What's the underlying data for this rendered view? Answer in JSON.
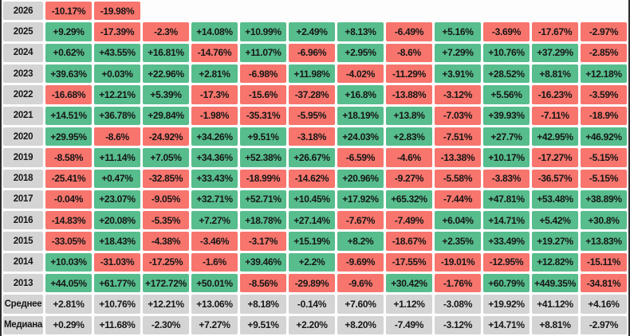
{
  "colors": {
    "positive": "#57bd8d",
    "negative": "#f7756d",
    "neutral": "#d4d4d4",
    "text": "#161616",
    "background": "#fdfdfd",
    "frame": "#2e2e2e"
  },
  "table": {
    "rows": [
      {
        "label": "2026",
        "type": "year",
        "values": [
          "-10.17%",
          "-19.98%",
          null,
          null,
          null,
          null,
          null,
          null,
          null,
          null,
          null,
          null
        ]
      },
      {
        "label": "2025",
        "type": "year",
        "values": [
          "+9.29%",
          "-17.39%",
          "-2.3%",
          "+14.08%",
          "+10.99%",
          "+2.49%",
          "+8.13%",
          "-6.49%",
          "+5.16%",
          "-3.69%",
          "-17.67%",
          "-2.97%"
        ]
      },
      {
        "label": "2024",
        "type": "year",
        "values": [
          "+0.62%",
          "+43.55%",
          "+16.81%",
          "-14.76%",
          "+11.07%",
          "-6.96%",
          "+2.95%",
          "-8.6%",
          "+7.29%",
          "+10.76%",
          "+37.29%",
          "-2.85%"
        ]
      },
      {
        "label": "2023",
        "type": "year",
        "values": [
          "+39.63%",
          "+0.03%",
          "+22.96%",
          "+2.81%",
          "-6.98%",
          "+11.98%",
          "-4.02%",
          "-11.29%",
          "+3.91%",
          "+28.52%",
          "+8.81%",
          "+12.18%"
        ]
      },
      {
        "label": "2022",
        "type": "year",
        "values": [
          "-16.68%",
          "+12.21%",
          "+5.39%",
          "-17.3%",
          "-15.6%",
          "-37.28%",
          "+16.8%",
          "-13.88%",
          "-3.12%",
          "+5.56%",
          "-16.23%",
          "-3.59%"
        ]
      },
      {
        "label": "2021",
        "type": "year",
        "values": [
          "+14.51%",
          "+36.78%",
          "+29.84%",
          "-1.98%",
          "-35.31%",
          "-5.95%",
          "+18.19%",
          "+13.8%",
          "-7.03%",
          "+39.93%",
          "-7.11%",
          "-18.9%"
        ]
      },
      {
        "label": "2020",
        "type": "year",
        "values": [
          "+29.95%",
          "-8.6%",
          "-24.92%",
          "+34.26%",
          "+9.51%",
          "-3.18%",
          "+24.03%",
          "+2.83%",
          "-7.51%",
          "+27.7%",
          "+42.95%",
          "+46.92%"
        ]
      },
      {
        "label": "2019",
        "type": "year",
        "values": [
          "-8.58%",
          "+11.14%",
          "+7.05%",
          "+34.36%",
          "+52.38%",
          "+26.67%",
          "-6.59%",
          "-4.6%",
          "-13.38%",
          "+10.17%",
          "-17.27%",
          "-5.15%"
        ]
      },
      {
        "label": "2018",
        "type": "year",
        "values": [
          "-25.41%",
          "+0.47%",
          "-32.85%",
          "+33.43%",
          "-18.99%",
          "-14.62%",
          "+20.96%",
          "-9.27%",
          "-5.58%",
          "-3.83%",
          "-36.57%",
          "-5.15%"
        ]
      },
      {
        "label": "2017",
        "type": "year",
        "values": [
          "-0.04%",
          "+23.07%",
          "-9.05%",
          "+32.71%",
          "+52.71%",
          "+10.45%",
          "+17.92%",
          "+65.32%",
          "-7.44%",
          "+47.81%",
          "+53.48%",
          "+38.89%"
        ]
      },
      {
        "label": "2016",
        "type": "year",
        "values": [
          "-14.83%",
          "+20.08%",
          "-5.35%",
          "+7.27%",
          "+18.78%",
          "+27.14%",
          "-7.67%",
          "-7.49%",
          "+6.04%",
          "+14.71%",
          "+5.42%",
          "+30.8%"
        ]
      },
      {
        "label": "2015",
        "type": "year",
        "values": [
          "-33.05%",
          "+18.43%",
          "-4.38%",
          "-3.46%",
          "-3.17%",
          "+15.19%",
          "+8.2%",
          "-18.67%",
          "+2.35%",
          "+33.49%",
          "+19.27%",
          "+13.83%"
        ]
      },
      {
        "label": "2014",
        "type": "year",
        "values": [
          "+10.03%",
          "-31.03%",
          "-17.25%",
          "-1.6%",
          "+39.46%",
          "+2.2%",
          "-9.69%",
          "-17.55%",
          "-19.01%",
          "-12.95%",
          "+12.82%",
          "-15.11%"
        ]
      },
      {
        "label": "2013",
        "type": "year",
        "values": [
          "+44.05%",
          "+61.77%",
          "+172.72%",
          "+50.01%",
          "-8.56%",
          "-29.89%",
          "-9.6%",
          "+30.42%",
          "-1.76%",
          "+60.79%",
          "+449.35%",
          "-34.81%"
        ]
      },
      {
        "label": "Среднее",
        "type": "summary",
        "values": [
          "+2.81%",
          "+10.76%",
          "+12.21%",
          "+13.06%",
          "+8.18%",
          "-0.14%",
          "+7.60%",
          "+1.12%",
          "-3.08%",
          "+19.92%",
          "+41.12%",
          "+4.16%"
        ]
      },
      {
        "label": "Медиана",
        "type": "summary",
        "values": [
          "+0.29%",
          "+11.68%",
          "-2.30%",
          "+7.27%",
          "+9.51%",
          "+2.20%",
          "+8.20%",
          "-7.49%",
          "-3.12%",
          "+14.71%",
          "+8.81%",
          "-2.97%"
        ]
      }
    ]
  },
  "chart_data": {
    "type": "heatmap",
    "title": "",
    "row_labels": [
      "2026",
      "2025",
      "2024",
      "2023",
      "2022",
      "2021",
      "2020",
      "2019",
      "2018",
      "2017",
      "2016",
      "2015",
      "2014",
      "2013",
      "Среднее",
      "Медиана"
    ],
    "column_labels": [],
    "n_columns": 12,
    "values_percent": [
      [
        -10.17,
        -19.98,
        null,
        null,
        null,
        null,
        null,
        null,
        null,
        null,
        null,
        null
      ],
      [
        9.29,
        -17.39,
        -2.3,
        14.08,
        10.99,
        2.49,
        8.13,
        -6.49,
        5.16,
        -3.69,
        -17.67,
        -2.97
      ],
      [
        0.62,
        43.55,
        16.81,
        -14.76,
        11.07,
        -6.96,
        2.95,
        -8.6,
        7.29,
        10.76,
        37.29,
        -2.85
      ],
      [
        39.63,
        0.03,
        22.96,
        2.81,
        -6.98,
        11.98,
        -4.02,
        -11.29,
        3.91,
        28.52,
        8.81,
        12.18
      ],
      [
        -16.68,
        12.21,
        5.39,
        -17.3,
        -15.6,
        -37.28,
        16.8,
        -13.88,
        -3.12,
        5.56,
        -16.23,
        -3.59
      ],
      [
        14.51,
        36.78,
        29.84,
        -1.98,
        -35.31,
        -5.95,
        18.19,
        13.8,
        -7.03,
        39.93,
        -7.11,
        -18.9
      ],
      [
        29.95,
        -8.6,
        -24.92,
        34.26,
        9.51,
        -3.18,
        24.03,
        2.83,
        -7.51,
        27.7,
        42.95,
        46.92
      ],
      [
        -8.58,
        11.14,
        7.05,
        34.36,
        52.38,
        26.67,
        -6.59,
        -4.6,
        -13.38,
        10.17,
        -17.27,
        -5.15
      ],
      [
        -25.41,
        0.47,
        -32.85,
        33.43,
        -18.99,
        -14.62,
        20.96,
        -9.27,
        -5.58,
        -3.83,
        -36.57,
        -5.15
      ],
      [
        -0.04,
        23.07,
        -9.05,
        32.71,
        52.71,
        10.45,
        17.92,
        65.32,
        -7.44,
        47.81,
        53.48,
        38.89
      ],
      [
        -14.83,
        20.08,
        -5.35,
        7.27,
        18.78,
        27.14,
        -7.67,
        -7.49,
        6.04,
        14.71,
        5.42,
        30.8
      ],
      [
        -33.05,
        18.43,
        -4.38,
        -3.46,
        -3.17,
        15.19,
        8.2,
        -18.67,
        2.35,
        33.49,
        19.27,
        13.83
      ],
      [
        10.03,
        -31.03,
        -17.25,
        -1.6,
        39.46,
        2.2,
        -9.69,
        -17.55,
        -19.01,
        -12.95,
        12.82,
        -15.11
      ],
      [
        44.05,
        61.77,
        172.72,
        50.01,
        -8.56,
        -29.89,
        -9.6,
        30.42,
        -1.76,
        60.79,
        449.35,
        -34.81
      ],
      [
        2.81,
        10.76,
        12.21,
        13.06,
        8.18,
        -0.14,
        7.6,
        1.12,
        -3.08,
        19.92,
        41.12,
        4.16
      ],
      [
        0.29,
        11.68,
        -2.3,
        7.27,
        9.51,
        2.2,
        8.2,
        -7.49,
        -3.12,
        14.71,
        8.81,
        -2.97
      ]
    ],
    "color_coding": "green = positive return, red = negative return, gray = summary rows and year labels",
    "legend_position": "none",
    "grid": "white gaps between cells"
  }
}
